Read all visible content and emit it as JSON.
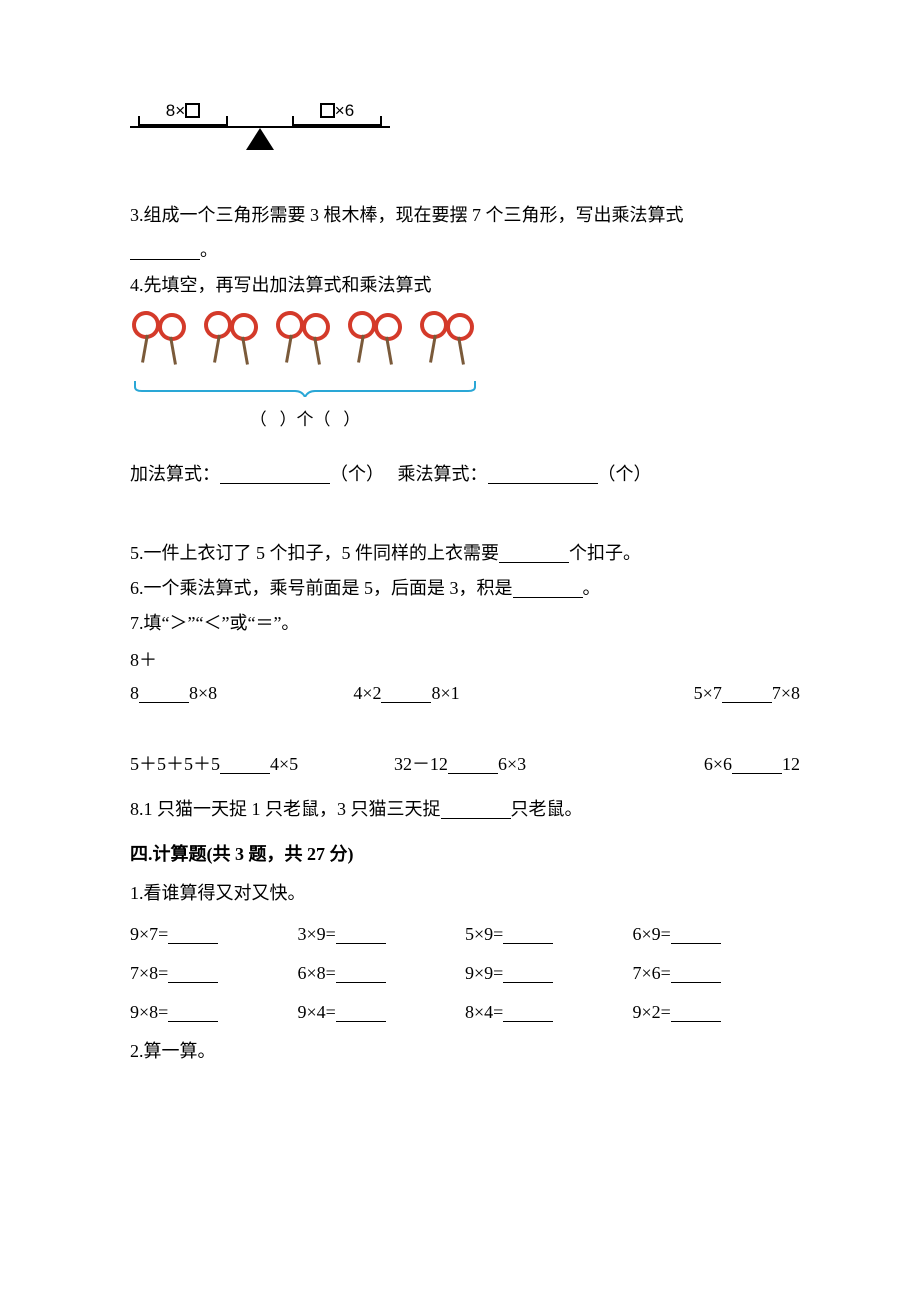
{
  "colors": {
    "text": "#000000",
    "bg": "#ffffff",
    "racket_ring": "#d43a2a",
    "racket_handle": "#7a5a3a",
    "brace": "#2aa7d6"
  },
  "balance": {
    "left_expr_prefix": "8×",
    "right_expr_suffix": "×6"
  },
  "q3": {
    "text_a": "3.组成一个三角形需要 3 根木棒，现在要摆 7 个三角形，写出乘法算式",
    "text_b": "。"
  },
  "q4": {
    "title": "4.先填空，再写出加法算式和乘法算式",
    "brace_label_left": "（",
    "brace_label_mid": "）个（",
    "brace_label_right": "）",
    "add_label": "加法算式：",
    "mul_label": "乘法算式：",
    "unit": "（个）"
  },
  "q5": "5.一件上衣订了 5 个扣子，5 件同样的上衣需要",
  "q5_tail": "个扣子。",
  "q6": "6.一个乘法算式，乘号前面是 5，后面是 3，积是",
  "q6_tail": "。",
  "q7": "7.填“＞”“＜”或“＝”。",
  "cmp1": {
    "line1": "8＋",
    "c1_left": "8",
    "c1_right": "8×8",
    "c2_left": "4×2",
    "c2_right": "8×1",
    "c3_left": "5×7",
    "c3_right": "7×8"
  },
  "cmp2": {
    "c1_left": "5＋5＋5＋5",
    "c1_right": "4×5",
    "c2_left": "32－12",
    "c2_right": "6×3",
    "c3_left": "6×6",
    "c3_right": "12"
  },
  "q8": "8.1 只猫一天捉 1 只老鼠，3 只猫三天捉",
  "q8_tail": "只老鼠。",
  "section4_title": "四.计算题(共 3 题，共 27 分)",
  "calc1": {
    "title": "1.看谁算得又对又快。",
    "rows": [
      [
        "9×7=",
        "3×9=",
        "5×9=",
        "6×9="
      ],
      [
        "7×8=",
        "6×8=",
        "9×9=",
        "7×6="
      ],
      [
        "9×8=",
        "9×4=",
        "8×4=",
        "9×2="
      ]
    ]
  },
  "calc2_title": "2.算一算。"
}
